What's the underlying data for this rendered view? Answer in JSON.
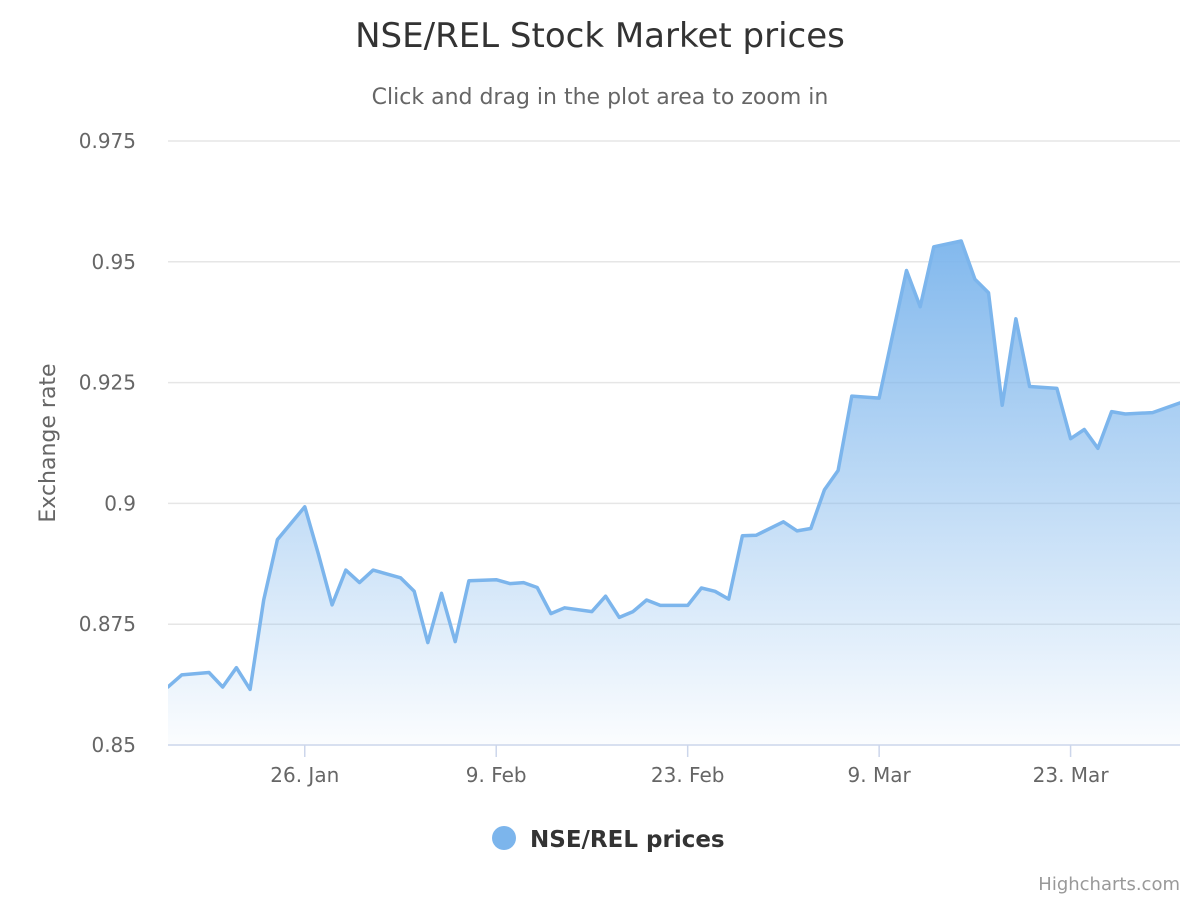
{
  "chart_data": {
    "type": "area",
    "title": "NSE/REL Stock Market prices",
    "subtitle": "Click and drag in the plot area to zoom in",
    "xlabel": "",
    "ylabel": "Exchange rate",
    "x_start": "2015-01-16",
    "x_end": "2015-03-31",
    "ylim": [
      0.85,
      0.975
    ],
    "y_ticks": [
      "0.85",
      "0.875",
      "0.9",
      "0.925",
      "0.95",
      "0.975"
    ],
    "x_ticks": [
      {
        "label": "26. Jan",
        "date": "2015-01-26"
      },
      {
        "label": "9. Feb",
        "date": "2015-02-09"
      },
      {
        "label": "23. Feb",
        "date": "2015-02-23"
      },
      {
        "label": "9. Mar",
        "date": "2015-03-09"
      },
      {
        "label": "23. Mar",
        "date": "2015-03-23"
      }
    ],
    "grid": true,
    "legend_position": "bottom-center",
    "series": [
      {
        "name": "NSE/REL prices",
        "color": "#7cb5ec",
        "points": [
          [
            "2015-01-16",
            0.862
          ],
          [
            "2015-01-17",
            0.8645
          ],
          [
            "2015-01-19",
            0.865
          ],
          [
            "2015-01-20",
            0.862
          ],
          [
            "2015-01-21",
            0.866
          ],
          [
            "2015-01-22",
            0.8615
          ],
          [
            "2015-01-23",
            0.88
          ],
          [
            "2015-01-24",
            0.8925
          ],
          [
            "2015-01-26",
            0.8993
          ],
          [
            "2015-01-27",
            0.8895
          ],
          [
            "2015-01-28",
            0.879
          ],
          [
            "2015-01-29",
            0.8862
          ],
          [
            "2015-01-30",
            0.8836
          ],
          [
            "2015-01-31",
            0.8862
          ],
          [
            "2015-02-02",
            0.8846
          ],
          [
            "2015-02-03",
            0.8818
          ],
          [
            "2015-02-04",
            0.8712
          ],
          [
            "2015-02-05",
            0.8814
          ],
          [
            "2015-02-06",
            0.8714
          ],
          [
            "2015-02-07",
            0.884
          ],
          [
            "2015-02-09",
            0.8842
          ],
          [
            "2015-02-10",
            0.8834
          ],
          [
            "2015-02-11",
            0.8836
          ],
          [
            "2015-02-12",
            0.8826
          ],
          [
            "2015-02-13",
            0.8772
          ],
          [
            "2015-02-14",
            0.8784
          ],
          [
            "2015-02-16",
            0.8776
          ],
          [
            "2015-02-17",
            0.8808
          ],
          [
            "2015-02-18",
            0.8764
          ],
          [
            "2015-02-19",
            0.8776
          ],
          [
            "2015-02-20",
            0.88
          ],
          [
            "2015-02-21",
            0.8789
          ],
          [
            "2015-02-23",
            0.8789
          ],
          [
            "2015-02-24",
            0.8825
          ],
          [
            "2015-02-25",
            0.8818
          ],
          [
            "2015-02-26",
            0.8802
          ],
          [
            "2015-02-27",
            0.8933
          ],
          [
            "2015-02-28",
            0.8934
          ],
          [
            "2015-03-02",
            0.8962
          ],
          [
            "2015-03-03",
            0.8943
          ],
          [
            "2015-03-04",
            0.8948
          ],
          [
            "2015-03-05",
            0.9028
          ],
          [
            "2015-03-06",
            0.9068
          ],
          [
            "2015-03-07",
            0.9222
          ],
          [
            "2015-03-09",
            0.9218
          ],
          [
            "2015-03-11",
            0.9482
          ],
          [
            "2015-03-12",
            0.9407
          ],
          [
            "2015-03-13",
            0.9531
          ],
          [
            "2015-03-15",
            0.9543
          ],
          [
            "2015-03-16",
            0.9464
          ],
          [
            "2015-03-17",
            0.9436
          ],
          [
            "2015-03-18",
            0.9203
          ],
          [
            "2015-03-19",
            0.9382
          ],
          [
            "2015-03-20",
            0.9242
          ],
          [
            "2015-03-22",
            0.9238
          ],
          [
            "2015-03-23",
            0.9134
          ],
          [
            "2015-03-24",
            0.9153
          ],
          [
            "2015-03-25",
            0.9114
          ],
          [
            "2015-03-26",
            0.919
          ],
          [
            "2015-03-27",
            0.9185
          ],
          [
            "2015-03-29",
            0.9188
          ],
          [
            "2015-03-31",
            0.9208
          ]
        ]
      }
    ]
  },
  "credits": "Highcharts.com"
}
